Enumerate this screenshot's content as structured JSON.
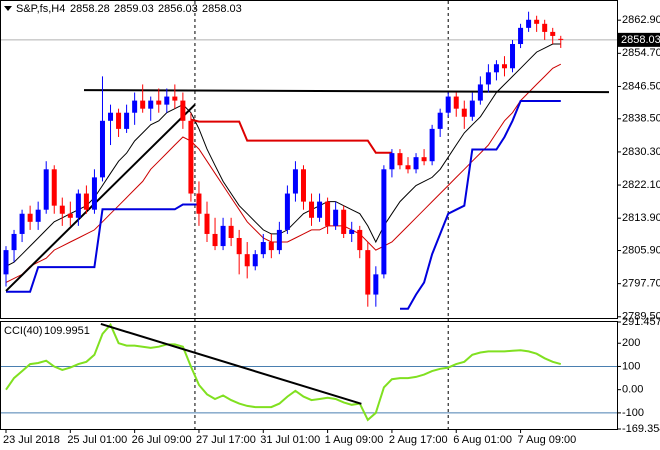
{
  "chart_data": [
    {
      "type": "candlestick",
      "title": "S&P,fs,H4",
      "header_values": [
        2858.28,
        2859.03,
        2856.03,
        2858.03
      ],
      "open": [
        2800,
        2806,
        2810,
        2815,
        2813,
        2816,
        2826,
        2817,
        2815,
        2814,
        2820,
        2816,
        2824,
        2838,
        2840,
        2836,
        2840,
        2843,
        2841,
        2843,
        2842,
        2844,
        2843,
        2838,
        2820,
        2815,
        2810,
        2807,
        2812,
        2809,
        2805,
        2802,
        2805,
        2808,
        2806,
        2811,
        2820,
        2826,
        2818,
        2814,
        2818,
        2812,
        2816,
        2810,
        2811,
        2806,
        2795,
        2800,
        2826,
        2830,
        2827,
        2826,
        2829,
        2828,
        2836,
        2840,
        2844,
        2841,
        2839,
        2843,
        2847,
        2850,
        2852,
        2851,
        2857,
        2861,
        2863,
        2862,
        2860,
        2858.28
      ],
      "high": [
        2807,
        2811,
        2816,
        2817,
        2818,
        2828,
        2827,
        2819,
        2818,
        2821,
        2822,
        2826,
        2849,
        2842,
        2841,
        2842,
        2845,
        2847,
        2844,
        2846,
        2846,
        2847,
        2845,
        2840,
        2823,
        2818,
        2814,
        2814,
        2814,
        2811,
        2808,
        2806,
        2810,
        2810,
        2813,
        2822,
        2828,
        2827,
        2820,
        2820,
        2819,
        2818,
        2817,
        2813,
        2812,
        2808,
        2802,
        2827,
        2831,
        2831,
        2829,
        2830,
        2831,
        2837,
        2841,
        2845,
        2845,
        2843,
        2845,
        2849,
        2852,
        2853,
        2854,
        2858,
        2862,
        2865,
        2864,
        2863,
        2861,
        2859.03
      ],
      "low": [
        2797,
        2803,
        2808,
        2811,
        2811,
        2815,
        2815,
        2812,
        2812,
        2812,
        2815,
        2815,
        2823,
        2832,
        2834,
        2835,
        2837,
        2840,
        2838,
        2840,
        2840,
        2841,
        2836,
        2818,
        2812,
        2808,
        2806,
        2806,
        2807,
        2800,
        2799,
        2801,
        2804,
        2804,
        2805,
        2810,
        2818,
        2816,
        2812,
        2813,
        2810,
        2811,
        2809,
        2808,
        2804,
        2792,
        2792,
        2799,
        2824,
        2826,
        2825,
        2825,
        2827,
        2827,
        2834,
        2839,
        2839,
        2836,
        2838,
        2842,
        2845,
        2848,
        2849,
        2850,
        2856,
        2860,
        2860,
        2858,
        2857,
        2856.03
      ],
      "close": [
        2806,
        2810,
        2815,
        2813,
        2816,
        2826,
        2817,
        2815,
        2814,
        2820,
        2816,
        2824,
        2838,
        2840,
        2836,
        2840,
        2843,
        2841,
        2843,
        2842,
        2844,
        2843,
        2838,
        2820,
        2815,
        2810,
        2807,
        2812,
        2809,
        2805,
        2802,
        2805,
        2808,
        2806,
        2811,
        2820,
        2826,
        2818,
        2814,
        2818,
        2812,
        2816,
        2810,
        2811,
        2806,
        2795,
        2800,
        2826,
        2830,
        2827,
        2826,
        2829,
        2828,
        2836,
        2840,
        2844,
        2841,
        2839,
        2843,
        2847,
        2850,
        2852,
        2851,
        2857,
        2861,
        2863,
        2862,
        2860,
        2859,
        2858.03
      ],
      "colors": {
        "up": "#0000ff",
        "down": "#ff0000"
      },
      "overlays": [
        {
          "color": "#000000",
          "values": [
            2802,
            2803,
            2805,
            2807,
            2809,
            2811,
            2813,
            2814,
            2815,
            2816,
            2817,
            2819,
            2822,
            2825,
            2828,
            2830,
            2833,
            2835,
            2837,
            2838,
            2840,
            2841,
            2842,
            2840,
            2836,
            2831,
            2827,
            2823,
            2820,
            2817,
            2815,
            2813,
            2811,
            2810,
            2810,
            2811,
            2813,
            2815,
            2816,
            2817,
            2818,
            2818,
            2817,
            2816,
            2815,
            2812,
            2808,
            2812,
            2815,
            2818,
            2820,
            2822,
            2823,
            2824,
            2826,
            2829,
            2832,
            2835,
            2837,
            2839,
            2842,
            2845,
            2847,
            2849,
            2851,
            2853,
            2855,
            2856,
            2857,
            2857
          ]
        },
        {
          "color": "#cc0000",
          "values": [
            2798,
            2799,
            2800,
            2802,
            2803,
            2804,
            2806,
            2807,
            2808,
            2809,
            2810,
            2811,
            2813,
            2815,
            2817,
            2819,
            2821,
            2823,
            2826,
            2828,
            2830,
            2832,
            2834,
            2833,
            2831,
            2828,
            2825,
            2822,
            2819,
            2816,
            2813,
            2811,
            2809,
            2808,
            2808,
            2808,
            2809,
            2810,
            2811,
            2811,
            2812,
            2812,
            2812,
            2811,
            2810,
            2808,
            2806,
            2807,
            2808,
            2810,
            2812,
            2814,
            2816,
            2818,
            2820,
            2822,
            2824,
            2826,
            2828,
            2830,
            2832,
            2835,
            2838,
            2840,
            2843,
            2845,
            2847,
            2849,
            2851,
            2852
          ]
        },
        {
          "color": "#0000dd",
          "values": [
            2795.7,
            2795.7,
            2795.7,
            2795.7,
            2801.8,
            2801.8,
            2801.8,
            2801.8,
            2801.8,
            2801.8,
            2801.8,
            2801.8,
            2816.1,
            2816.1,
            2816.1,
            2816.1,
            2816.1,
            2816.1,
            2816.1,
            2816.1,
            2816.1,
            2816.1,
            2817.3,
            2817.3,
            2817.3,
            null,
            null,
            null,
            null,
            null,
            null,
            null,
            null,
            null,
            null,
            null,
            null,
            null,
            null,
            null,
            null,
            null,
            null,
            null,
            null,
            null,
            null,
            null,
            null,
            2791.5,
            2791.5,
            2795,
            2798,
            2805,
            2810,
            2815,
            2816,
            2817,
            2830.9,
            2830.9,
            2830.9,
            2830.9,
            2834,
            2838,
            2842.9,
            2842.9,
            2842.9,
            2842.9,
            2842.9,
            2842.9
          ]
        },
        {
          "color": "#dd0000",
          "values": [
            null,
            null,
            null,
            null,
            null,
            null,
            null,
            null,
            null,
            null,
            null,
            null,
            null,
            null,
            null,
            null,
            null,
            null,
            null,
            null,
            null,
            null,
            null,
            2838.3,
            2837.8,
            2837.8,
            2837.8,
            2837.8,
            2837.8,
            2837.8,
            2833.1,
            2833.1,
            2833.1,
            2833.1,
            2833.1,
            2833.1,
            2833.1,
            2833.1,
            2833.1,
            2833.1,
            2833.1,
            2833.1,
            2833.1,
            2833.1,
            2833.1,
            2833.1,
            2830.1,
            2830.1,
            2830.1,
            null,
            null,
            null,
            null,
            null,
            null,
            null,
            null,
            null,
            null,
            null,
            null,
            null,
            null,
            null,
            null,
            null,
            null,
            null,
            null,
            null
          ]
        }
      ],
      "trendlines": [
        {
          "color": "#000000",
          "x": [
            0,
            23.5
          ],
          "y": [
            2795.9,
            2842
          ]
        },
        {
          "color": "#000000",
          "x": [
            9.7,
            75
          ],
          "y": [
            2845.6,
            2845.1
          ]
        }
      ],
      "vlines": [
        23.5,
        55
      ],
      "current_price": 2858.03,
      "ylim": [
        2789.2,
        2867.4
      ],
      "yticks": [
        {
          "value": 2862.9,
          "label": "2862.90"
        },
        {
          "value": 2854.7,
          "label": "2854.70"
        },
        {
          "value": 2846.5,
          "label": "2846.50"
        },
        {
          "value": 2838.5,
          "label": "2838.50"
        },
        {
          "value": 2830.3,
          "label": "2830.30"
        },
        {
          "value": 2822.1,
          "label": "2822.10"
        },
        {
          "value": 2813.9,
          "label": "2813.90"
        },
        {
          "value": 2805.9,
          "label": "2805.90"
        },
        {
          "value": 2797.7,
          "label": "2797.70"
        },
        {
          "value": 2789.5,
          "label": "2789.50"
        }
      ],
      "xticks": [
        {
          "value": 0,
          "label": "23 Jul 2018"
        },
        {
          "value": 8,
          "label": "25 Jul 01:00"
        },
        {
          "value": 16,
          "label": "26 Jul 09:00"
        },
        {
          "value": 24,
          "label": "27 Jul 17:00"
        },
        {
          "value": 32,
          "label": "31 Jul 01:00"
        },
        {
          "value": 40,
          "label": "1 Aug 09:00"
        },
        {
          "value": 48,
          "label": "2 Aug 17:00"
        },
        {
          "value": 56,
          "label": "6 Aug 01:00"
        },
        {
          "value": 64,
          "label": "7 Aug 09:00"
        }
      ]
    },
    {
      "type": "line",
      "title": "CCI(40)",
      "last_value": 109.9951,
      "color": "#80e020",
      "values": [
        0,
        50,
        80,
        110,
        115,
        125,
        100,
        85,
        95,
        110,
        120,
        150,
        240,
        280,
        200,
        190,
        190,
        185,
        180,
        185,
        195,
        195,
        185,
        100,
        20,
        -20,
        -40,
        -25,
        -45,
        -60,
        -70,
        -75,
        -75,
        -75,
        -60,
        -30,
        -5,
        -30,
        -45,
        -40,
        -35,
        -40,
        -55,
        -65,
        -60,
        -130,
        -100,
        10,
        45,
        50,
        50,
        55,
        65,
        80,
        90,
        95,
        110,
        120,
        150,
        160,
        165,
        165,
        165,
        168,
        170,
        165,
        155,
        135,
        120,
        109.9951
      ],
      "trendlines": [
        {
          "color": "#000000",
          "x": [
            11.8,
            44.2
          ],
          "y": [
            283,
            -61
          ]
        }
      ],
      "levels": [
        100,
        -100
      ],
      "ylim": [
        -169.3548,
        291.457
      ],
      "yticks": [
        291.457,
        200,
        100,
        {
          "value": 0,
          "label": "0.00"
        },
        -100,
        -169.3548
      ]
    }
  ]
}
